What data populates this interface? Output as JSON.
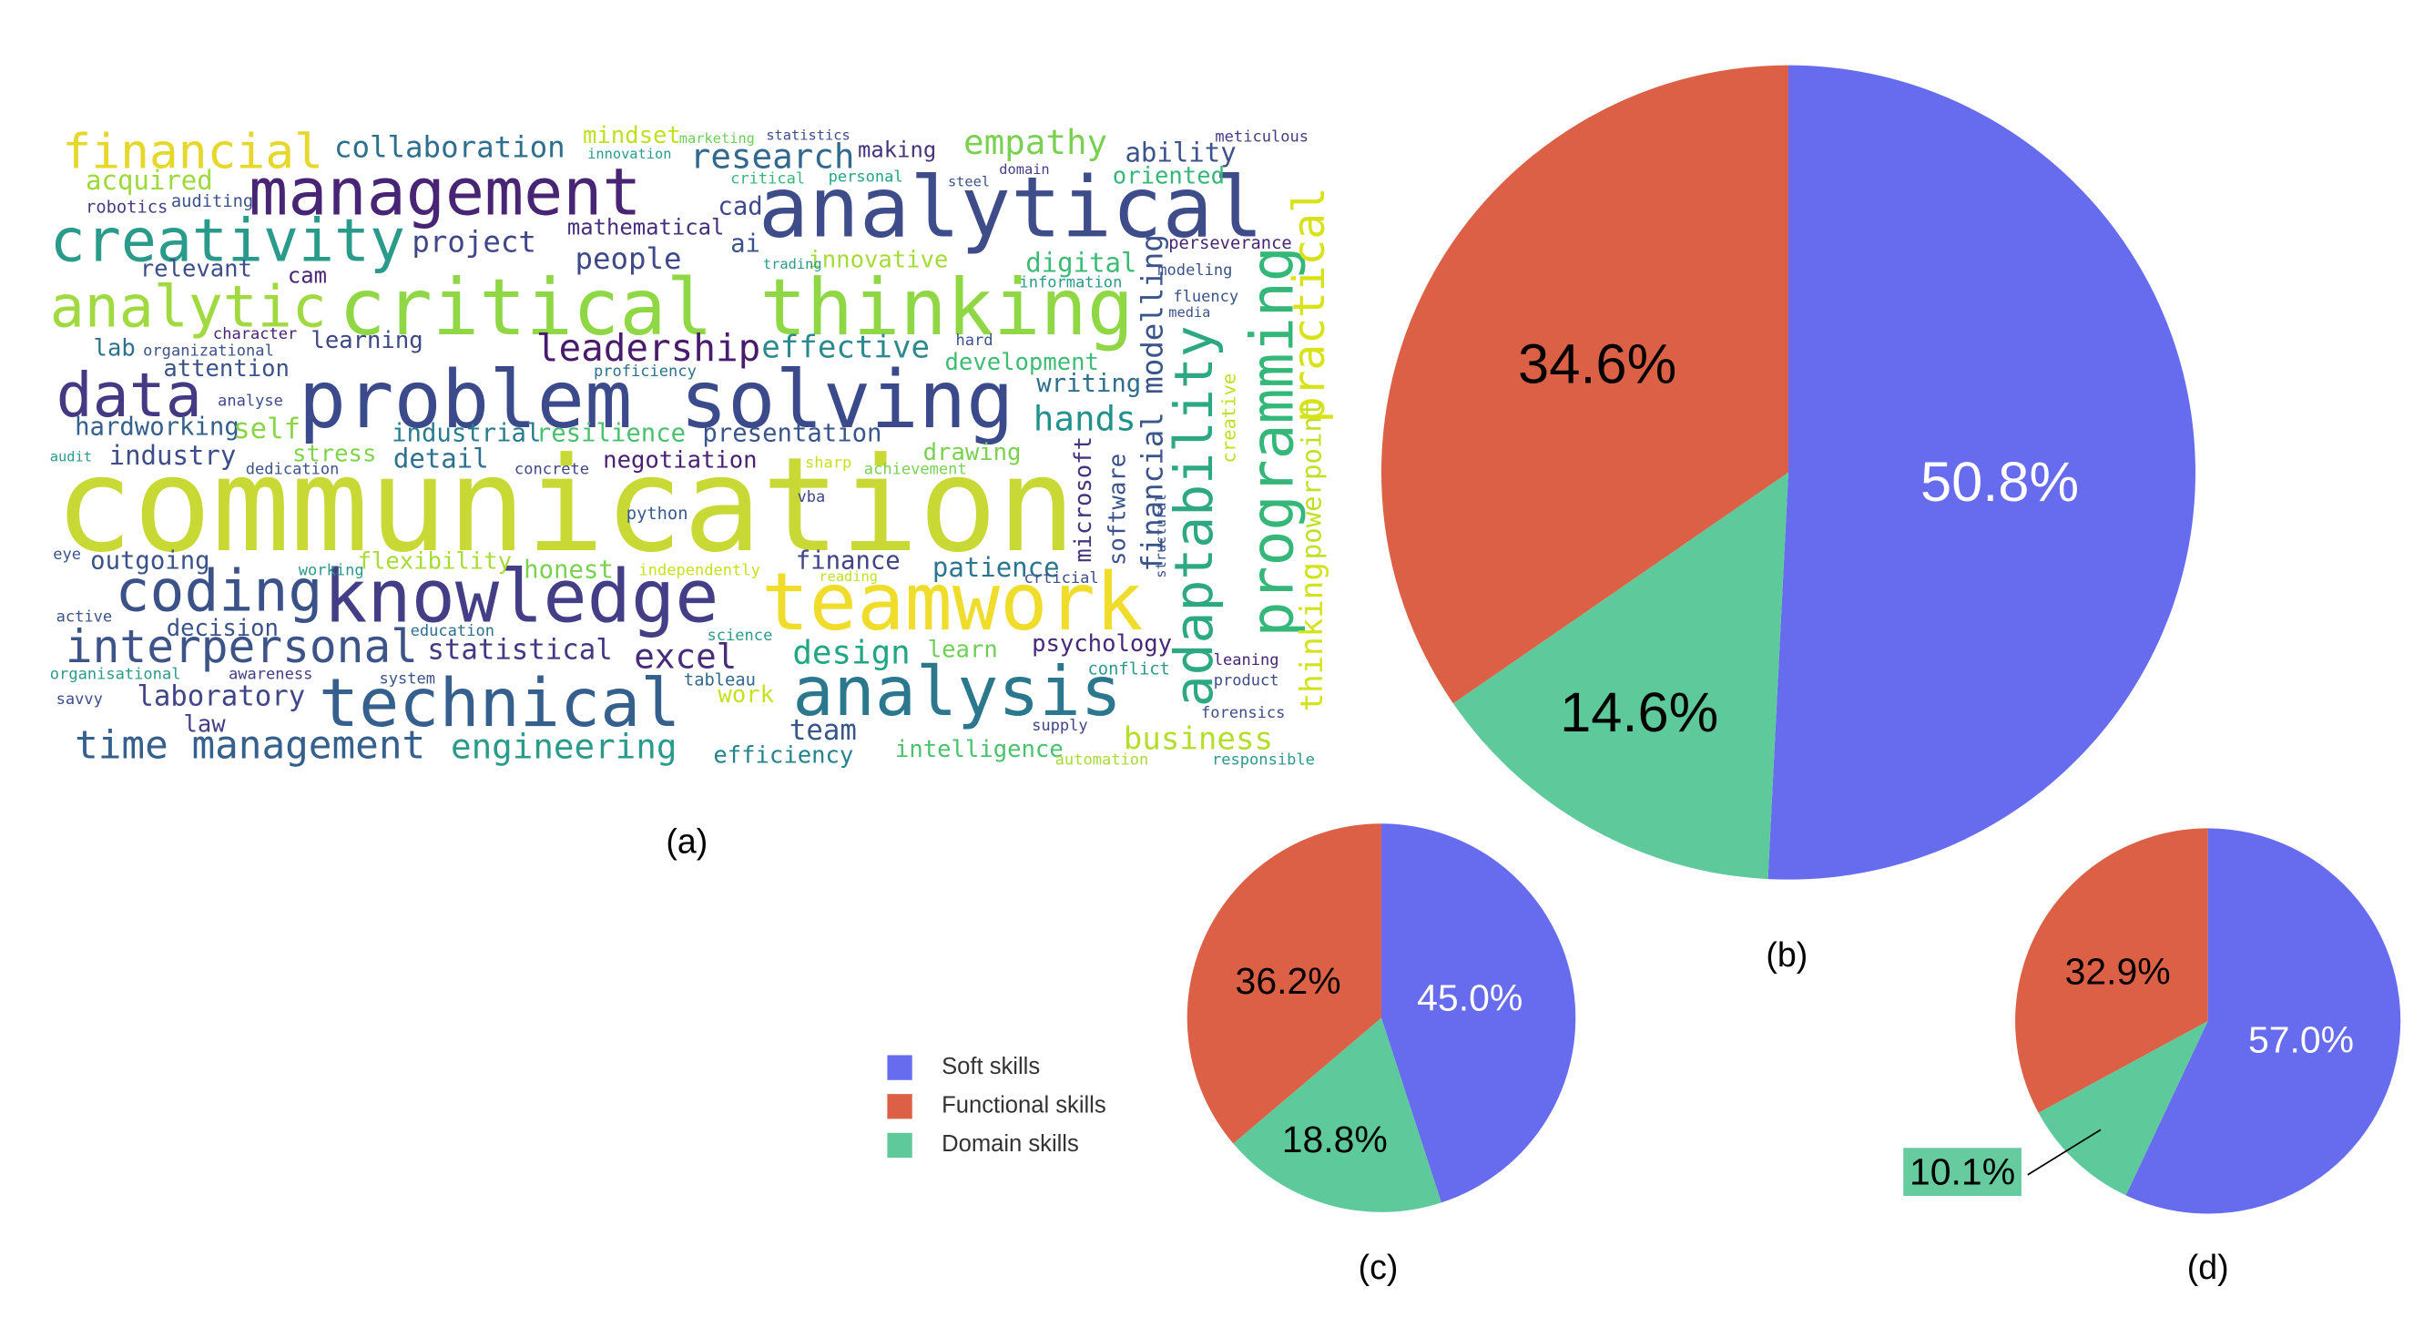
{
  "chart_data": [
    {
      "type": "wordcloud",
      "caption": "(a)",
      "words": [
        "communication",
        "problem solving",
        "critical thinking",
        "analytical",
        "management",
        "creativity",
        "financial",
        "analytic",
        "data",
        "coding",
        "knowledge",
        "teamwork",
        "technical",
        "analysis",
        "interpersonal",
        "time management",
        "engineering",
        "leadership",
        "effective",
        "collaboration",
        "research",
        "empathy",
        "ability",
        "programming",
        "adaptability",
        "practical",
        "powerpoint",
        "thinking",
        "financial modelling",
        "microsoft",
        "hands",
        "writing",
        "development",
        "digital",
        "innovative",
        "project",
        "people",
        "mathematical",
        "ai",
        "cad",
        "acquired",
        "relevant",
        "cam",
        "lab",
        "learning",
        "attention",
        "hardworking",
        "self",
        "industry",
        "industrial",
        "resilience",
        "presentation",
        "detail",
        "negotiation",
        "stress",
        "drawing",
        "outgoing",
        "flexibility",
        "honest",
        "finance",
        "patience",
        "statistical",
        "excel",
        "design",
        "learn",
        "psychology",
        "decision",
        "laboratory",
        "law",
        "team",
        "business",
        "intelligence",
        "efficiency",
        "mindset",
        "making",
        "oriented",
        "perseverance",
        "fluency",
        "python",
        "work",
        "tableau",
        "auditing",
        "robotics",
        "marketing",
        "statistics",
        "innovation",
        "personal",
        "critical",
        "steel",
        "domain",
        "meticulous",
        "character",
        "organizational",
        "proficiency",
        "analyse",
        "audit",
        "dedication",
        "concrete",
        "sharp",
        "achievement",
        "vba",
        "eye",
        "active",
        "organisational",
        "savvy",
        "awareness",
        "system",
        "education",
        "science",
        "conflict",
        "product",
        "forensics",
        "supply",
        "automation",
        "responsible",
        "leaning",
        "modeling",
        "media",
        "hard",
        "trading",
        "information",
        "independently",
        "reading",
        "crticial",
        "working",
        "structural",
        "software",
        "creative"
      ]
    },
    {
      "type": "pie",
      "caption": "(b)",
      "categories": [
        "Soft skills",
        "Functional skills",
        "Domain skills"
      ],
      "values": [
        50.8,
        34.6,
        14.6
      ],
      "value_labels": [
        "50.8%",
        "34.6%",
        "14.6%"
      ],
      "colors": [
        "#676cef",
        "#dc6045",
        "#5ec99b"
      ]
    },
    {
      "type": "pie",
      "caption": "(c)",
      "categories": [
        "Soft skills",
        "Functional skills",
        "Domain skills"
      ],
      "values": [
        45.0,
        36.2,
        18.8
      ],
      "value_labels": [
        "45.0%",
        "36.2%",
        "18.8%"
      ],
      "colors": [
        "#676cef",
        "#dc6045",
        "#5ec99b"
      ]
    },
    {
      "type": "pie",
      "caption": "(d)",
      "categories": [
        "Soft skills",
        "Functional skills",
        "Domain skills"
      ],
      "values": [
        57.0,
        32.9,
        10.1
      ],
      "value_labels": [
        "57.0%",
        "32.9%",
        "10.1%"
      ],
      "colors": [
        "#676cef",
        "#dc6045",
        "#5ec99b"
      ]
    }
  ]
}
